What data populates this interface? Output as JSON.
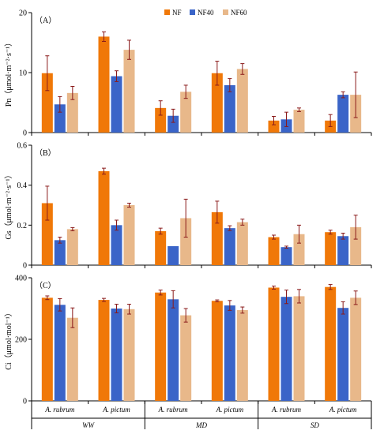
{
  "colors": {
    "NF": "#f07808",
    "NF40": "#3a64c8",
    "NF60": "#e8b88a",
    "err": "#8a1a1a"
  },
  "legend": [
    {
      "key": "NF",
      "label": "NF"
    },
    {
      "key": "NF40",
      "label": "NF40"
    },
    {
      "key": "NF60",
      "label": "NF60"
    }
  ],
  "x_axis": {
    "species": [
      "A. rubrum",
      "A. pictum",
      "A. rubrum",
      "A. pictum",
      "A. rubrum",
      "A. pictum"
    ],
    "groups": [
      "WW",
      "MD",
      "SD"
    ]
  },
  "chart_data": [
    {
      "type": "bar",
      "panel_label": "（A）",
      "ylabel": "Pn（μmol·m⁻²·s⁻¹）",
      "ylim": [
        0,
        20
      ],
      "yticks": [
        "0",
        "10",
        "20"
      ],
      "categories": [
        "A. rubrum",
        "A. pictum",
        "A. rubrum",
        "A. pictum",
        "A. rubrum",
        "A. pictum"
      ],
      "groups": [
        "WW",
        "MD",
        "SD"
      ],
      "series": [
        {
          "name": "NF",
          "values": [
            9.9,
            16.0,
            4.1,
            9.9,
            2.0,
            2.0
          ],
          "errors": [
            2.9,
            0.8,
            1.2,
            2.0,
            0.7,
            1.0
          ]
        },
        {
          "name": "NF40",
          "values": [
            4.7,
            9.4,
            2.8,
            7.9,
            2.2,
            6.3
          ],
          "errors": [
            1.3,
            0.9,
            1.1,
            1.1,
            1.2,
            0.5
          ]
        },
        {
          "name": "NF60",
          "values": [
            6.6,
            13.8,
            6.8,
            10.6,
            3.8,
            6.3
          ],
          "errors": [
            1.1,
            1.6,
            1.1,
            0.9,
            0.3,
            3.8
          ]
        }
      ]
    },
    {
      "type": "bar",
      "panel_label": "（B）",
      "ylabel": "Gs（μmol·m⁻²·s⁻¹）",
      "ylim": [
        0,
        0.6
      ],
      "yticks": [
        "0",
        "0.2",
        "0.4",
        "0.6"
      ],
      "categories": [
        "A. rubrum",
        "A. pictum",
        "A. rubrum",
        "A. pictum",
        "A. rubrum",
        "A. pictum"
      ],
      "groups": [
        "WW",
        "MD",
        "SD"
      ],
      "series": [
        {
          "name": "NF",
          "values": [
            0.31,
            0.47,
            0.17,
            0.265,
            0.14,
            0.165
          ],
          "errors": [
            0.085,
            0.015,
            0.015,
            0.055,
            0.01,
            0.01
          ]
        },
        {
          "name": "NF40",
          "values": [
            0.125,
            0.2,
            0.095,
            0.185,
            0.09,
            0.145
          ],
          "errors": [
            0.015,
            0.025,
            0.0,
            0.012,
            0.005,
            0.015
          ]
        },
        {
          "name": "NF60",
          "values": [
            0.18,
            0.3,
            0.235,
            0.215,
            0.155,
            0.19
          ],
          "errors": [
            0.008,
            0.01,
            0.095,
            0.015,
            0.045,
            0.06
          ]
        }
      ]
    },
    {
      "type": "bar",
      "panel_label": "（C）",
      "ylabel": "Ci（μmol·mol⁻¹）",
      "ylim": [
        0,
        400
      ],
      "yticks": [
        "0",
        "200",
        "400"
      ],
      "categories": [
        "A. rubrum",
        "A. pictum",
        "A. rubrum",
        "A. pictum",
        "A. rubrum",
        "A. pictum"
      ],
      "groups": [
        "WW",
        "MD",
        "SD"
      ],
      "series": [
        {
          "name": "NF",
          "values": [
            335,
            328,
            352,
            325,
            368,
            370
          ],
          "errors": [
            6,
            5,
            8,
            3,
            5,
            8
          ]
        },
        {
          "name": "NF40",
          "values": [
            312,
            300,
            330,
            310,
            338,
            302
          ],
          "errors": [
            20,
            14,
            28,
            16,
            22,
            20
          ]
        },
        {
          "name": "NF60",
          "values": [
            270,
            298,
            278,
            295,
            340,
            335
          ],
          "errors": [
            32,
            16,
            22,
            10,
            22,
            22
          ]
        }
      ]
    }
  ]
}
